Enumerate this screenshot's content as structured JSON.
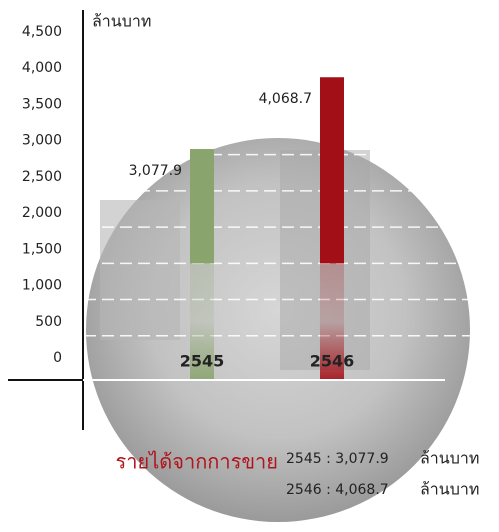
{
  "chart_data": {
    "type": "bar",
    "y_axis_label": "ล้านบาท",
    "categories": [
      "2545",
      "2546"
    ],
    "values": [
      3077.9,
      4068.7
    ],
    "value_labels": [
      "3,077.9",
      "4,068.7"
    ],
    "colors": [
      "#8aa46e",
      "#a30f17"
    ],
    "ylim": [
      0,
      4500
    ],
    "yticks": [
      0,
      500,
      {
        "value": 1000,
        "label": "1,000"
      },
      {
        "value": 1500,
        "label": "1,500"
      },
      {
        "value": 2000,
        "label": "2,000"
      },
      {
        "value": 2500,
        "label": "2,500"
      },
      {
        "value": 3000,
        "label": "3,000"
      },
      {
        "value": 3500,
        "label": "3,500"
      },
      {
        "value": 4000,
        "label": "4,000"
      },
      {
        "value": 4500,
        "label": "4,500"
      }
    ],
    "grid": true,
    "summary_title": "รายได้จากการขาย",
    "summary_lines": [
      {
        "text": "2545 : 3,077.9",
        "unit": "ล้านบาท"
      },
      {
        "text": "2546 : 4,068.7",
        "unit": "ล้านบาท"
      }
    ]
  }
}
